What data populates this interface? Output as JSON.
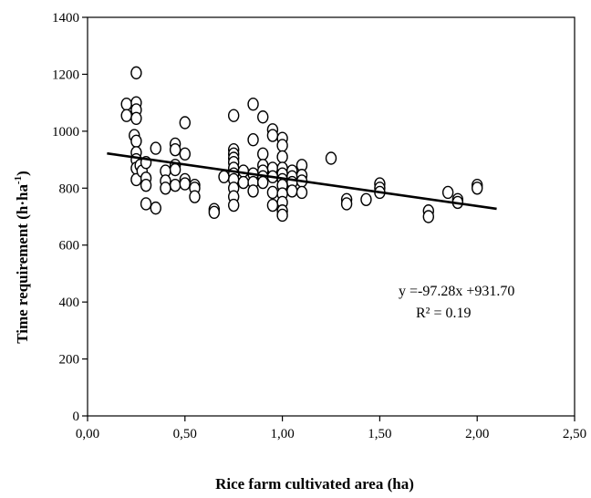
{
  "chart_data": {
    "type": "scatter",
    "xlabel": "Rice farm cultivated area (ha)",
    "ylabel_main": "Time requirement (h·ha",
    "ylabel_sup": "-1",
    "ylabel_close": ")",
    "xlim": [
      0,
      2.5
    ],
    "ylim": [
      0,
      1400
    ],
    "x_ticks": [
      "0,00",
      "0,50",
      "1,00",
      "1,50",
      "2,00",
      "2,50"
    ],
    "x_tick_values": [
      0,
      0.5,
      1.0,
      1.5,
      2.0,
      2.5
    ],
    "y_ticks": [
      "0",
      "200",
      "400",
      "600",
      "800",
      "1000",
      "1200",
      "1400"
    ],
    "y_tick_values": [
      0,
      200,
      400,
      600,
      800,
      1000,
      1200,
      1400
    ],
    "grid": false,
    "legend": false,
    "trendline": {
      "slope": -97.28,
      "intercept": 931.7,
      "x_range": [
        0.1,
        2.1
      ]
    },
    "equation_text": "y =-97.28x +931.70",
    "r2_text": "R² = 0.19",
    "points": [
      [
        0.2,
        1095
      ],
      [
        0.2,
        1055
      ],
      [
        0.25,
        1205
      ],
      [
        0.25,
        1100
      ],
      [
        0.25,
        1075
      ],
      [
        0.25,
        1045
      ],
      [
        0.24,
        985
      ],
      [
        0.25,
        965
      ],
      [
        0.25,
        925
      ],
      [
        0.25,
        900
      ],
      [
        0.25,
        870
      ],
      [
        0.25,
        830
      ],
      [
        0.27,
        880
      ],
      [
        0.28,
        860
      ],
      [
        0.3,
        890
      ],
      [
        0.3,
        835
      ],
      [
        0.3,
        810
      ],
      [
        0.3,
        745
      ],
      [
        0.35,
        940
      ],
      [
        0.35,
        730
      ],
      [
        0.4,
        860
      ],
      [
        0.4,
        825
      ],
      [
        0.4,
        800
      ],
      [
        0.45,
        955
      ],
      [
        0.45,
        935
      ],
      [
        0.45,
        880
      ],
      [
        0.45,
        865
      ],
      [
        0.45,
        810
      ],
      [
        0.5,
        1030
      ],
      [
        0.5,
        920
      ],
      [
        0.5,
        830
      ],
      [
        0.5,
        815
      ],
      [
        0.55,
        810
      ],
      [
        0.55,
        800
      ],
      [
        0.55,
        770
      ],
      [
        0.65,
        725
      ],
      [
        0.65,
        715
      ],
      [
        0.7,
        840
      ],
      [
        0.75,
        1055
      ],
      [
        0.75,
        935
      ],
      [
        0.75,
        920
      ],
      [
        0.75,
        905
      ],
      [
        0.75,
        890
      ],
      [
        0.75,
        870
      ],
      [
        0.75,
        850
      ],
      [
        0.75,
        830
      ],
      [
        0.75,
        800
      ],
      [
        0.75,
        770
      ],
      [
        0.75,
        740
      ],
      [
        0.8,
        860
      ],
      [
        0.8,
        820
      ],
      [
        0.85,
        1095
      ],
      [
        0.85,
        970
      ],
      [
        0.85,
        850
      ],
      [
        0.85,
        820
      ],
      [
        0.85,
        790
      ],
      [
        0.9,
        1050
      ],
      [
        0.9,
        920
      ],
      [
        0.9,
        880
      ],
      [
        0.9,
        860
      ],
      [
        0.9,
        840
      ],
      [
        0.9,
        820
      ],
      [
        0.95,
        1005
      ],
      [
        0.95,
        985
      ],
      [
        0.95,
        870
      ],
      [
        0.95,
        840
      ],
      [
        0.95,
        785
      ],
      [
        0.95,
        740
      ],
      [
        1.0,
        975
      ],
      [
        1.0,
        950
      ],
      [
        1.0,
        910
      ],
      [
        1.0,
        870
      ],
      [
        1.0,
        850
      ],
      [
        1.0,
        830
      ],
      [
        1.0,
        810
      ],
      [
        1.0,
        780
      ],
      [
        1.0,
        750
      ],
      [
        1.0,
        720
      ],
      [
        1.0,
        705
      ],
      [
        1.05,
        860
      ],
      [
        1.05,
        840
      ],
      [
        1.05,
        820
      ],
      [
        1.05,
        790
      ],
      [
        1.1,
        880
      ],
      [
        1.1,
        845
      ],
      [
        1.1,
        825
      ],
      [
        1.1,
        785
      ],
      [
        1.25,
        905
      ],
      [
        1.33,
        760
      ],
      [
        1.33,
        745
      ],
      [
        1.43,
        760
      ],
      [
        1.5,
        815
      ],
      [
        1.5,
        800
      ],
      [
        1.5,
        785
      ],
      [
        1.75,
        720
      ],
      [
        1.75,
        700
      ],
      [
        1.85,
        785
      ],
      [
        1.9,
        760
      ],
      [
        1.9,
        750
      ],
      [
        2.0,
        810
      ],
      [
        2.0,
        800
      ]
    ]
  }
}
